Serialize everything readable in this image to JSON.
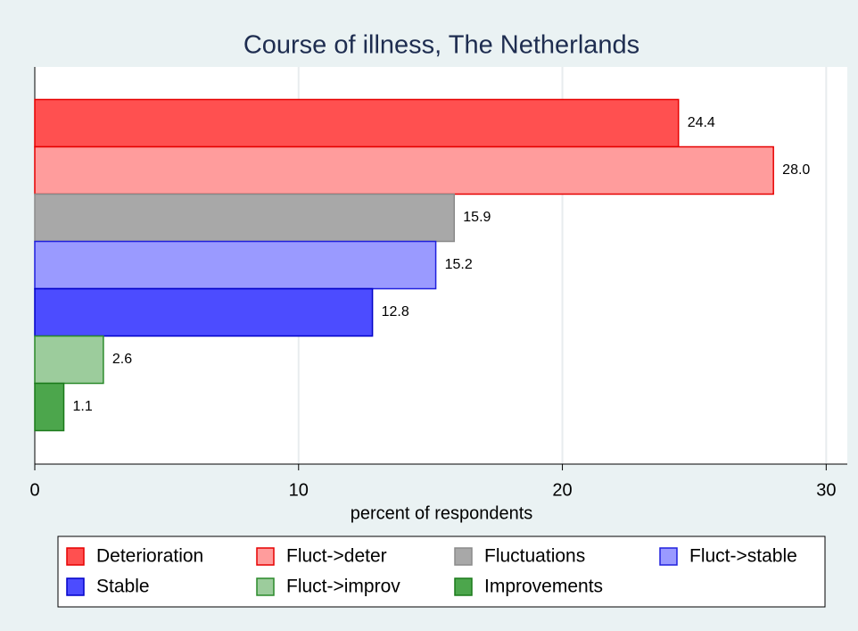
{
  "chart_data": {
    "type": "barh",
    "title": "Course of illness, The Netherlands",
    "xlabel": "percent of respondents",
    "series": [
      {
        "name": "Deterioration",
        "color": "#ff5050",
        "edgecolor": "#e60000",
        "values": [
          24.4
        ],
        "value_labels": [
          "24.4"
        ]
      },
      {
        "name": "Fluct->deter",
        "color": "#ff9c9c",
        "edgecolor": "#e60000",
        "values": [
          28.0
        ],
        "value_labels": [
          "28.0"
        ]
      },
      {
        "name": "Fluctuations",
        "color": "#a8a8a8",
        "edgecolor": "#8a8a8a",
        "values": [
          15.9
        ],
        "value_labels": [
          "15.9"
        ]
      },
      {
        "name": "Fluct->stable",
        "color": "#9a9aff",
        "edgecolor": "#2020dd",
        "values": [
          15.2
        ],
        "value_labels": [
          "15.2"
        ]
      },
      {
        "name": "Stable",
        "color": "#4c4cff",
        "edgecolor": "#0000c8",
        "values": [
          12.8
        ],
        "value_labels": [
          "12.8"
        ]
      },
      {
        "name": "Fluct->improv",
        "color": "#9ccc9c",
        "edgecolor": "#2a8a2a",
        "values": [
          2.6
        ],
        "value_labels": [
          "2.6"
        ]
      },
      {
        "name": "Improvements",
        "color": "#4ca64c",
        "edgecolor": "#1a7a1a",
        "values": [
          1.1
        ],
        "value_labels": [
          "1.1"
        ]
      }
    ],
    "xlim": [
      0,
      30.8
    ],
    "xticks": [
      0,
      10,
      20,
      30
    ],
    "grid": true,
    "legend": "bottom"
  }
}
